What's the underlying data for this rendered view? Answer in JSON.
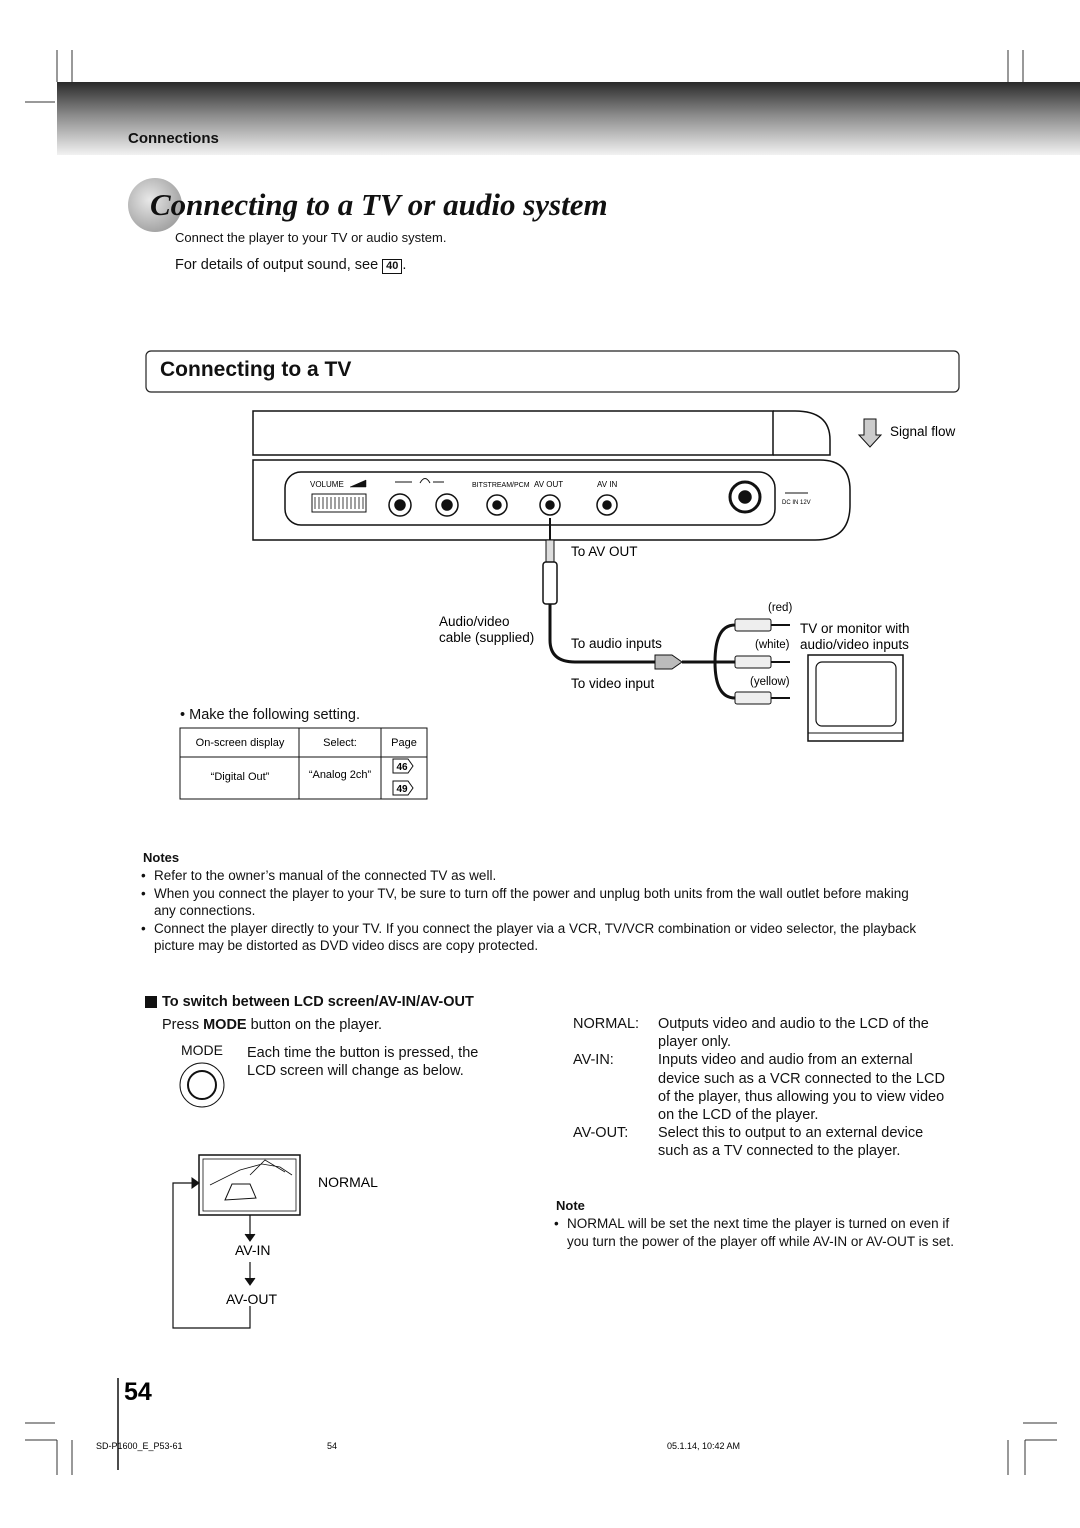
{
  "header": {
    "section": "Connections"
  },
  "title": "Connecting to a TV or audio system",
  "intro": {
    "line1": "Connect the player to your TV or audio system.",
    "line2": "For details of output sound, see",
    "ref": "40",
    "end": "."
  },
  "subsection": "Connecting to a TV",
  "diagram": {
    "volume": "VOLUME",
    "bitstream": "BITSTREAM/PCM",
    "av_out": "AV OUT",
    "av_in": "AV IN",
    "dc_in": "DC IN 12V",
    "signal_flow": "Signal flow",
    "to_av_out": "To AV OUT",
    "cable_line1": "Audio/video",
    "cable_line2": "cable (supplied)",
    "to_audio": "To audio inputs",
    "to_video": "To video input",
    "red": "(red)",
    "white": "(white)",
    "yellow": "(yellow)",
    "tv_line1": "TV or monitor with",
    "tv_line2": "audio/video inputs"
  },
  "setting": {
    "intro": "Make the following setting.",
    "headers": [
      "On-screen display",
      "Select:",
      "Page"
    ],
    "row": [
      "“Digital Out”",
      "“Analog 2ch”"
    ],
    "pages": [
      "46",
      "49"
    ]
  },
  "notes": {
    "title": "Notes",
    "items": [
      "Refer to the owner’s manual of the connected TV as well.",
      "When you connect the player to your TV, be sure to turn off the power and unplug both units from the wall outlet before making any connections.",
      "Connect the player directly to your TV.  If you connect the player via a VCR, TV/VCR combination or video selector, the playback picture may be distorted as DVD video discs are copy protected."
    ]
  },
  "switch": {
    "heading": "To switch between LCD screen/AV-IN/AV-OUT",
    "press": [
      "Press ",
      "MODE",
      " button on the player."
    ],
    "mode_label": "MODE",
    "each": "Each time the button is pressed, the LCD screen will change as below.",
    "cycle": [
      "NORMAL",
      "AV-IN",
      "AV-OUT"
    ],
    "definitions": [
      {
        "term": "NORMAL:",
        "desc": "Outputs video and audio to the LCD of the player only."
      },
      {
        "term": "AV-IN:",
        "desc": "Inputs video and audio from an external device such as a VCR connected to the LCD of the player, thus allowing you to view video on the LCD of the player."
      },
      {
        "term": "AV-OUT:",
        "desc": "Select this to output to an external device such as a TV connected to the player."
      }
    ],
    "note_title": "Note",
    "note": "NORMAL will be set the next time the player is turned on even if you turn the power of the player off while AV-IN or AV-OUT is set."
  },
  "page_number": "54",
  "footer": [
    "SD-P1600_E_P53-61",
    "54",
    "05.1.14, 10:42 AM"
  ]
}
